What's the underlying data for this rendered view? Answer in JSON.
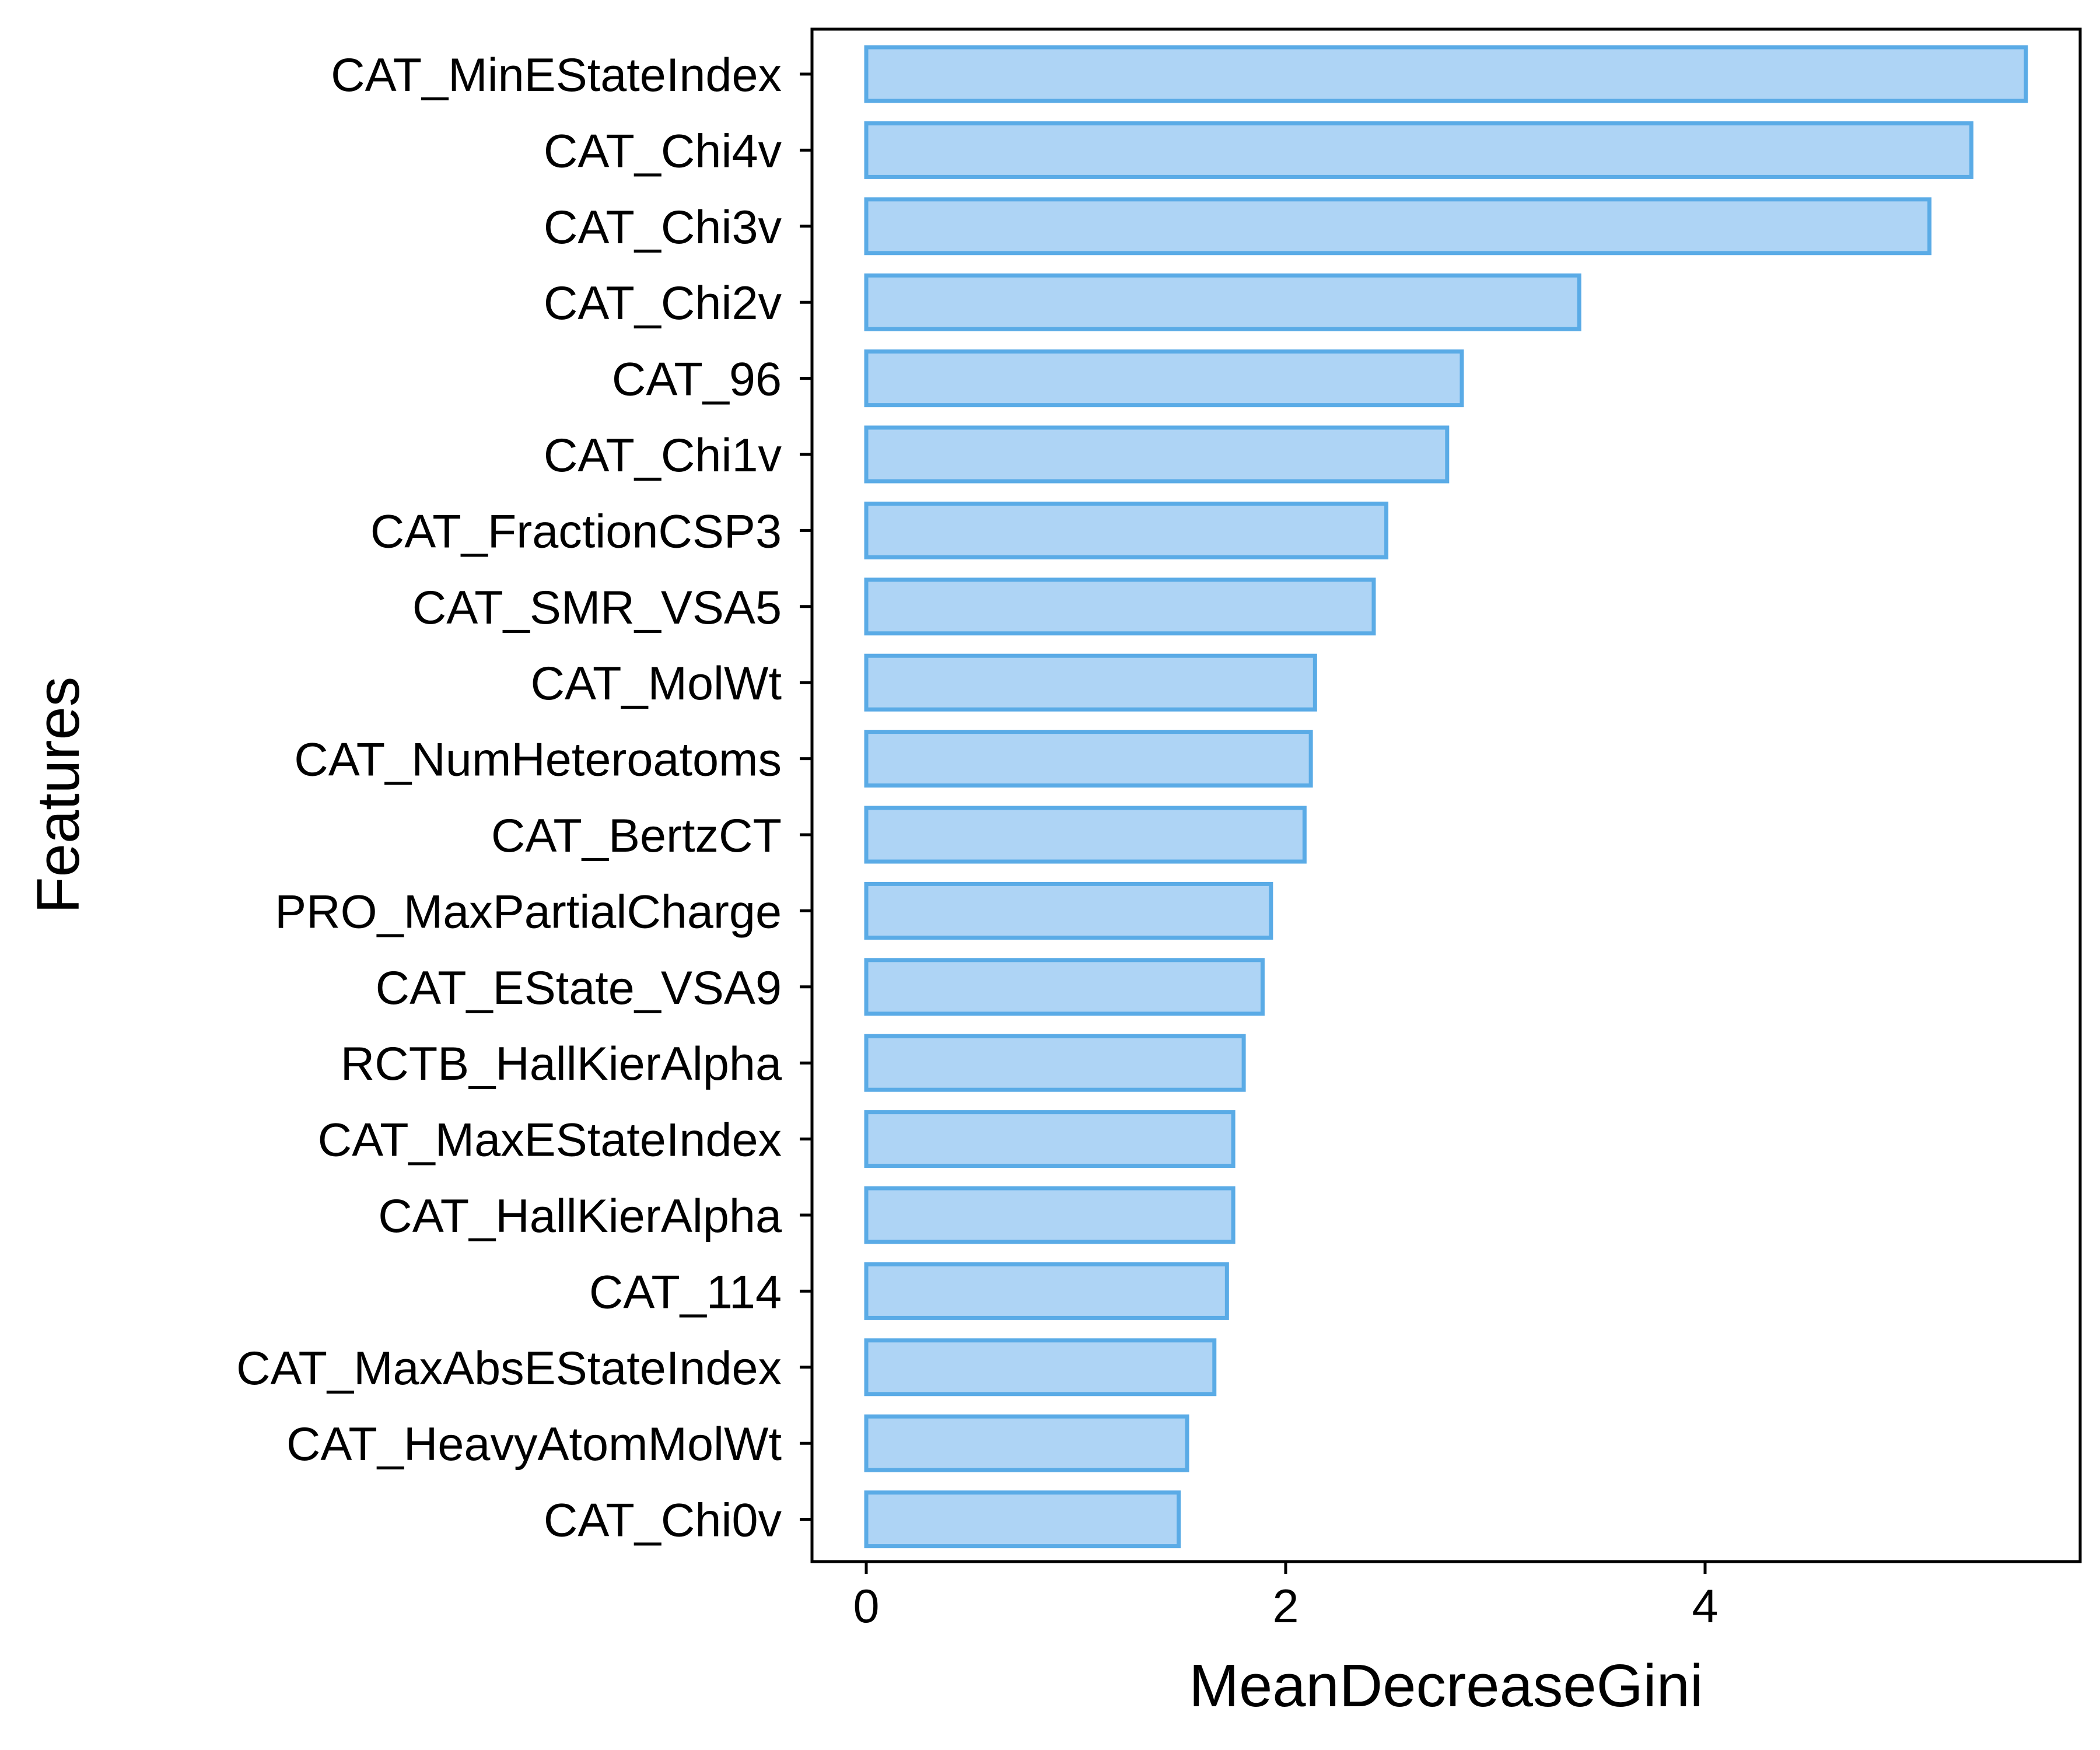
{
  "chart_data": {
    "type": "bar",
    "orientation": "horizontal",
    "title": "",
    "xlabel": "MeanDecreaseGini",
    "ylabel": "Features",
    "xlim": [
      -0.26,
      5.81
    ],
    "xticks": [
      0,
      2,
      4
    ],
    "grid": false,
    "legend": "none",
    "colors": {
      "bar_fill": "#AED4F5",
      "bar_stroke": "#5AABE6",
      "axis": "#000000"
    },
    "categories": [
      "CAT_MinEStateIndex",
      "CAT_Chi4v",
      "CAT_Chi3v",
      "CAT_Chi2v",
      "CAT_96",
      "CAT_Chi1v",
      "CAT_FractionCSP3",
      "CAT_SMR_VSA5",
      "CAT_MolWt",
      "CAT_NumHeteroatoms",
      "CAT_BertzCT",
      "PRO_MaxPartialCharge",
      "CAT_EState_VSA9",
      "RCTB_HallKierAlpha",
      "CAT_MaxEStateIndex",
      "CAT_HallKierAlpha",
      "CAT_114",
      "CAT_MaxAbsEStateIndex",
      "CAT_HeavyAtomMolWt",
      "CAT_Chi0v"
    ],
    "values": [
      5.53,
      5.27,
      5.07,
      3.4,
      2.84,
      2.77,
      2.48,
      2.42,
      2.14,
      2.12,
      2.09,
      1.93,
      1.89,
      1.8,
      1.75,
      1.75,
      1.72,
      1.66,
      1.53,
      1.49
    ]
  }
}
